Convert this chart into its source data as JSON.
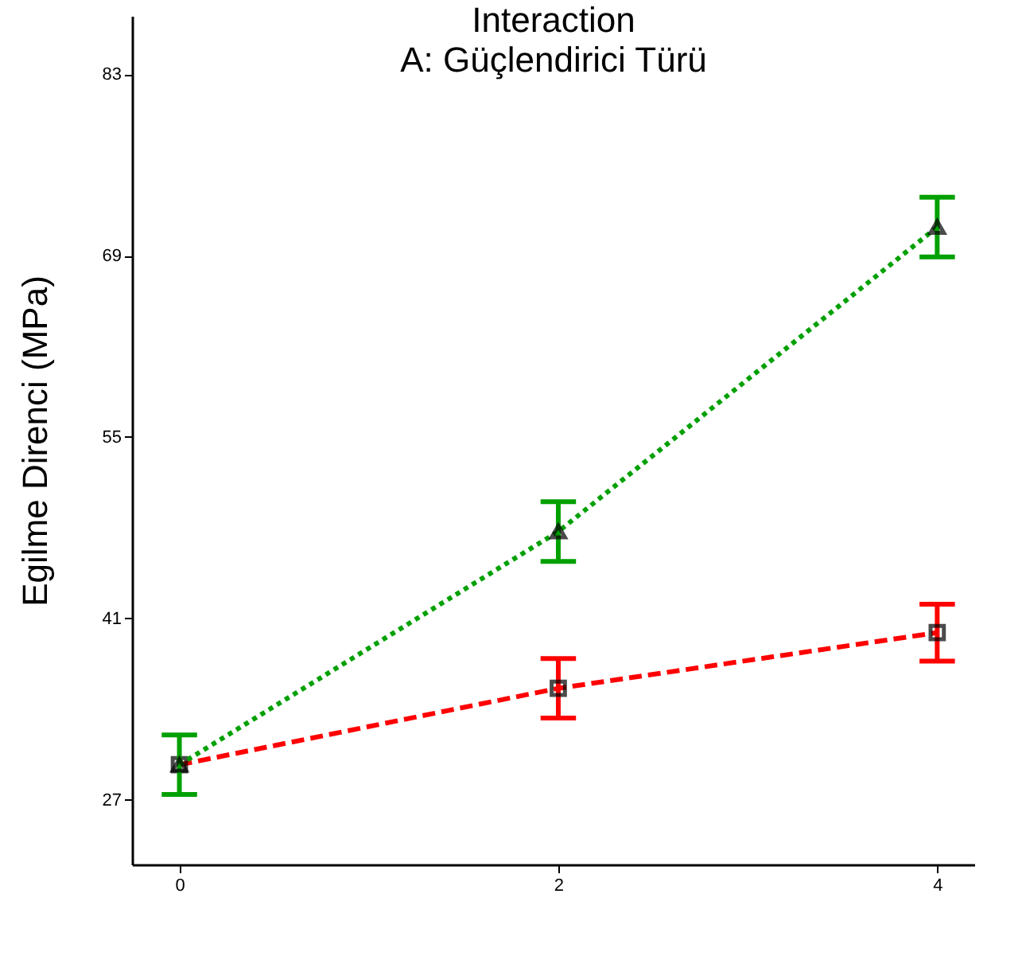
{
  "chart_data": {
    "type": "line",
    "title": "Interaction",
    "subtitle": "A: Güçlendirici Türü",
    "ylabel": "Egilme Direnci (MPa)",
    "x": [
      0,
      2,
      4
    ],
    "series": [
      {
        "color": "#ff0000",
        "values": [
          29.7,
          35.6,
          39.9
        ],
        "errors": [
          null,
          2.3,
          2.2
        ],
        "marker": "square",
        "line_style": "dashed"
      },
      {
        "color": "#00a000",
        "values": [
          29.7,
          47.7,
          71.2
        ],
        "errors": [
          2.3,
          2.3,
          2.3
        ],
        "marker": "triangle",
        "line_style": "dotted"
      }
    ],
    "xlim": [
      -0.25,
      4.2
    ],
    "xticks": [
      0,
      2,
      4
    ],
    "ylim": [
      22,
      87.5
    ],
    "yticks": [
      27,
      41,
      55,
      69,
      83
    ],
    "grid": false
  }
}
